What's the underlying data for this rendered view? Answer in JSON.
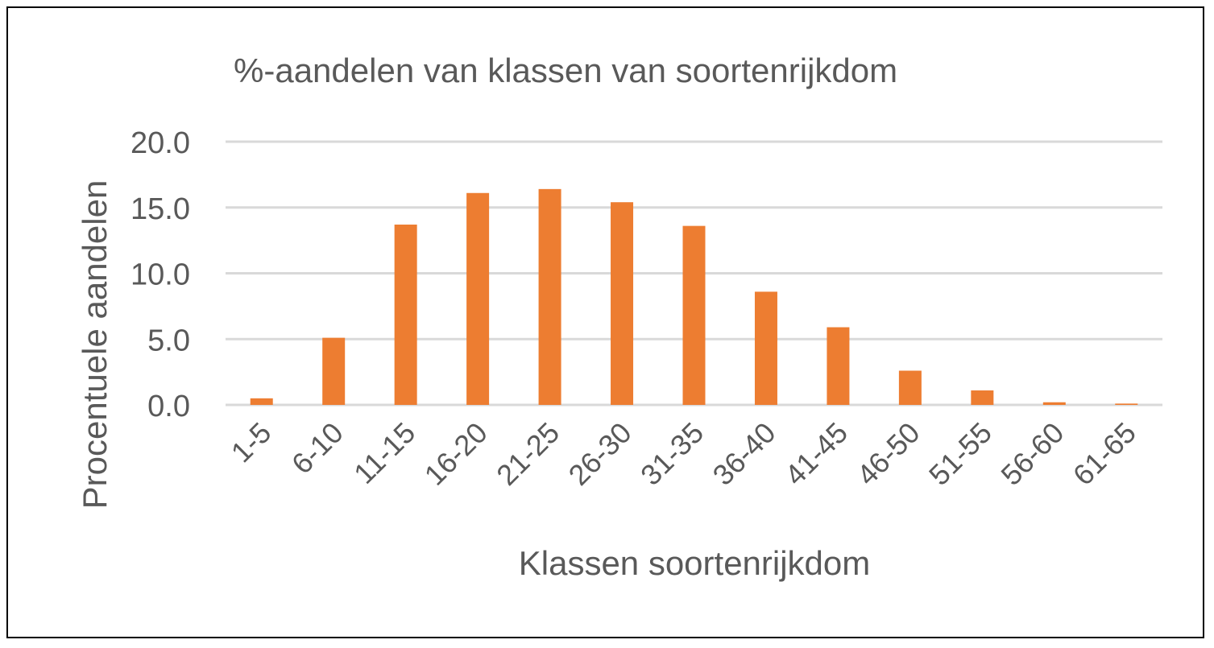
{
  "chart_data": {
    "type": "bar",
    "title": "%-aandelen van klassen van soortenrijkdom",
    "xlabel": "Klassen soortenrijkdom",
    "ylabel": "Procentuele aandelen",
    "categories": [
      "1-5",
      "6-10",
      "11-15",
      "16-20",
      "21-25",
      "26-30",
      "31-35",
      "36-40",
      "41-45",
      "46-50",
      "51-55",
      "56-60",
      "61-65"
    ],
    "values": [
      0.5,
      5.1,
      13.7,
      16.1,
      16.4,
      15.4,
      13.6,
      8.6,
      5.9,
      2.6,
      1.1,
      0.2,
      0.1
    ],
    "ylim": [
      0,
      20
    ],
    "yticks": [
      "0.0",
      "5.0",
      "10.0",
      "15.0",
      "20.0"
    ],
    "grid": true,
    "legend": "none",
    "colors": {
      "bar": "#ED7D31",
      "grid": "#D9D9D9",
      "text": "#595959"
    }
  }
}
